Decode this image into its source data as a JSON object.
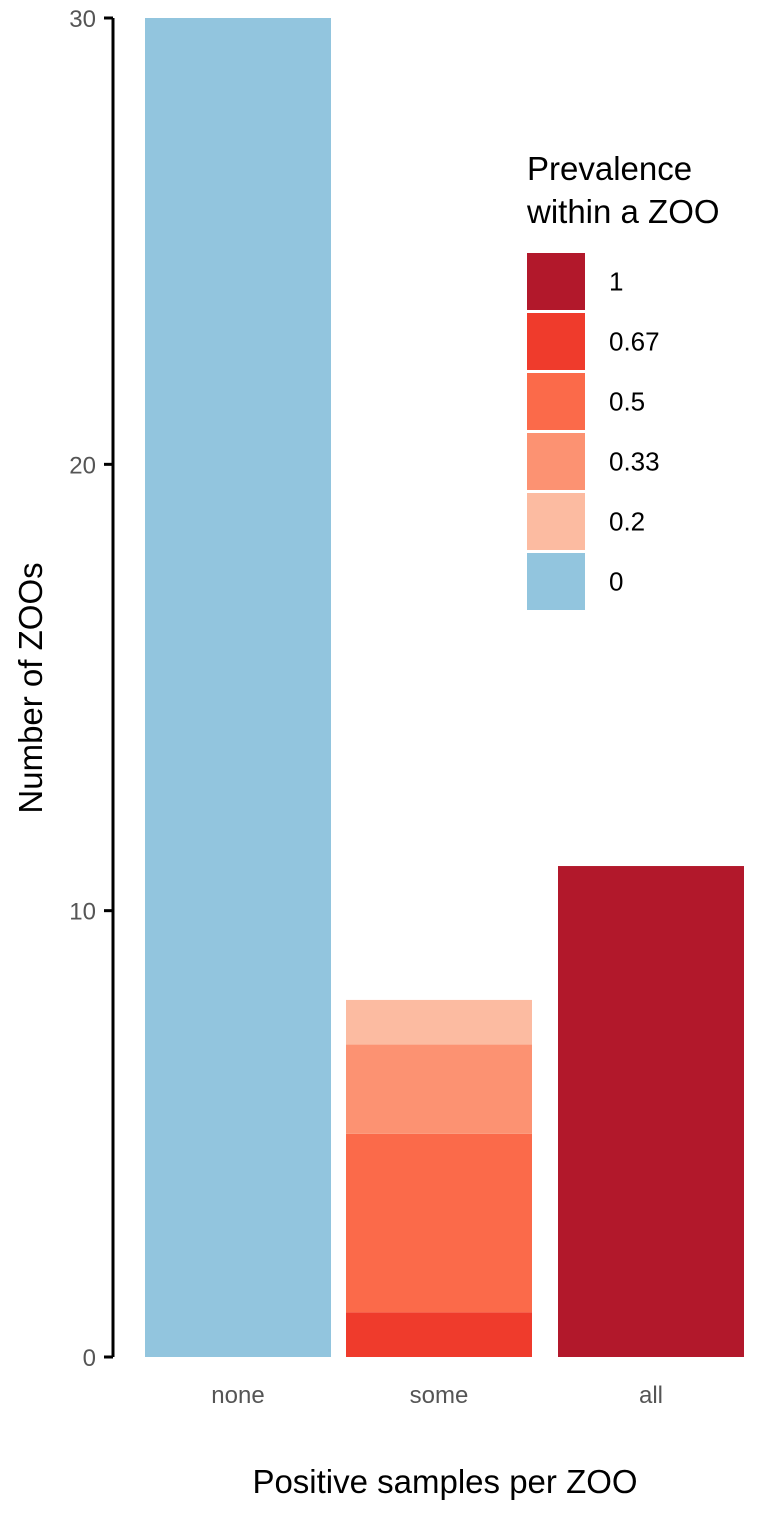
{
  "chart_data": {
    "type": "bar",
    "stacked": true,
    "categories": [
      "none",
      "some",
      "all"
    ],
    "series": [
      {
        "name": "0",
        "color": "#92c5de",
        "values": [
          30,
          0,
          0
        ]
      },
      {
        "name": "0.2",
        "color": "#fcbba1",
        "values": [
          0,
          1,
          0
        ]
      },
      {
        "name": "0.33",
        "color": "#fc9272",
        "values": [
          0,
          2,
          0
        ]
      },
      {
        "name": "0.5",
        "color": "#fb6a4a",
        "values": [
          0,
          4,
          0
        ]
      },
      {
        "name": "0.67",
        "color": "#ef3b2c",
        "values": [
          0,
          1,
          0
        ]
      },
      {
        "name": "1",
        "color": "#b2182b",
        "values": [
          0,
          0,
          11
        ]
      }
    ],
    "xlabel": "Positive samples per ZOO",
    "ylabel": "Number of ZOOs",
    "ylim": [
      0,
      30
    ],
    "yticks": [
      "0",
      "10",
      "20",
      "30"
    ],
    "grid": false,
    "legend": {
      "title_lines": [
        "Prevalence",
        "within a ZOO"
      ],
      "placement": "top-right",
      "order": [
        "1",
        "0.67",
        "0.5",
        "0.33",
        "0.2",
        "0"
      ]
    }
  }
}
